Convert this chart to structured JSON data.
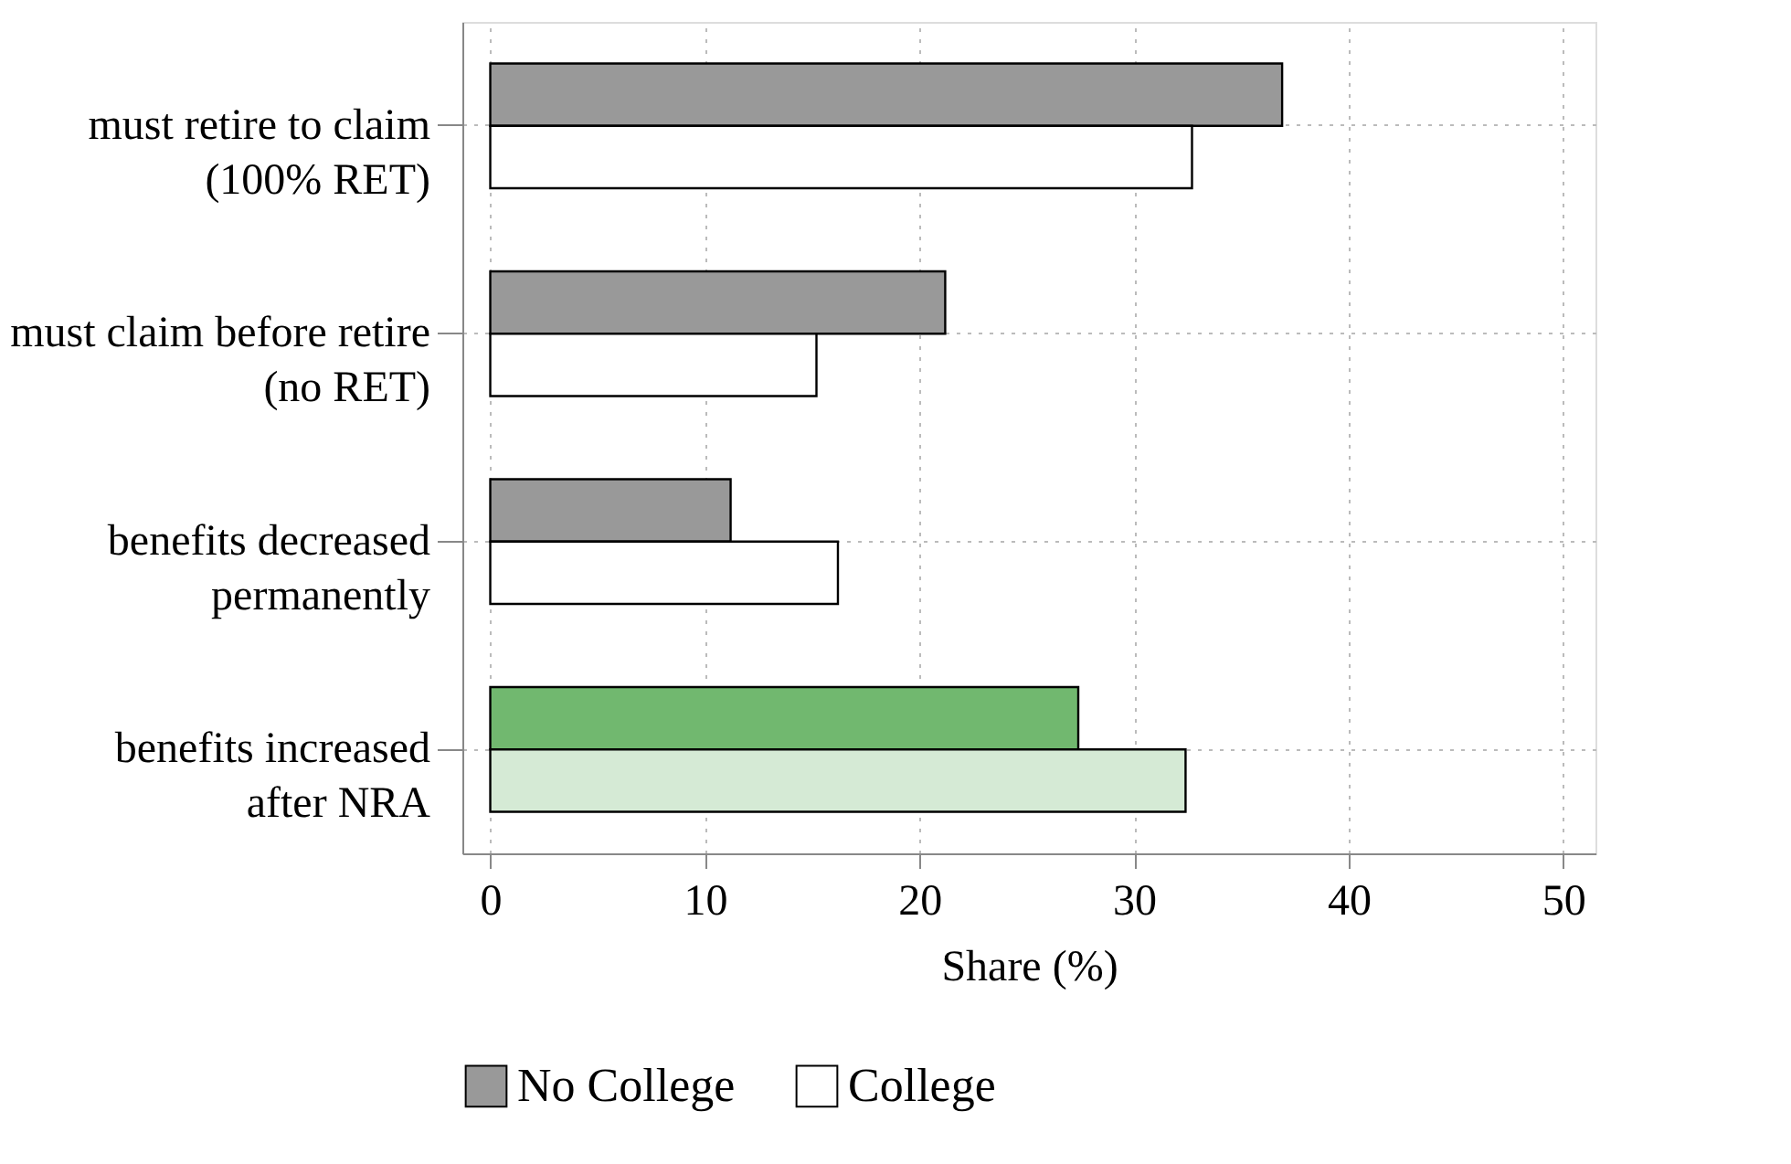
{
  "chart_data": {
    "type": "bar",
    "orientation": "horizontal",
    "xlabel": "Share (%)",
    "categories": [
      "must retire to claim\n(100% RET)",
      "must claim before retire\n(no RET)",
      "benefits decreased\npermanently",
      "benefits increased\nafter NRA"
    ],
    "series": [
      {
        "name": "No College",
        "color": "#999999",
        "colors": [
          "#999999",
          "#999999",
          "#999999",
          "#71b86f"
        ],
        "values": [
          36.9,
          21.2,
          11.2,
          27.4
        ]
      },
      {
        "name": "College",
        "color": "#ffffff",
        "colors": [
          "#ffffff",
          "#ffffff",
          "#ffffff",
          "#d5ead5"
        ],
        "values": [
          32.7,
          15.2,
          16.2,
          32.4
        ]
      }
    ],
    "xlim": [
      -1.3,
      51.5
    ],
    "xticks": [
      0,
      10,
      20,
      30,
      40,
      50
    ],
    "grid": true,
    "legend": "bottom"
  }
}
